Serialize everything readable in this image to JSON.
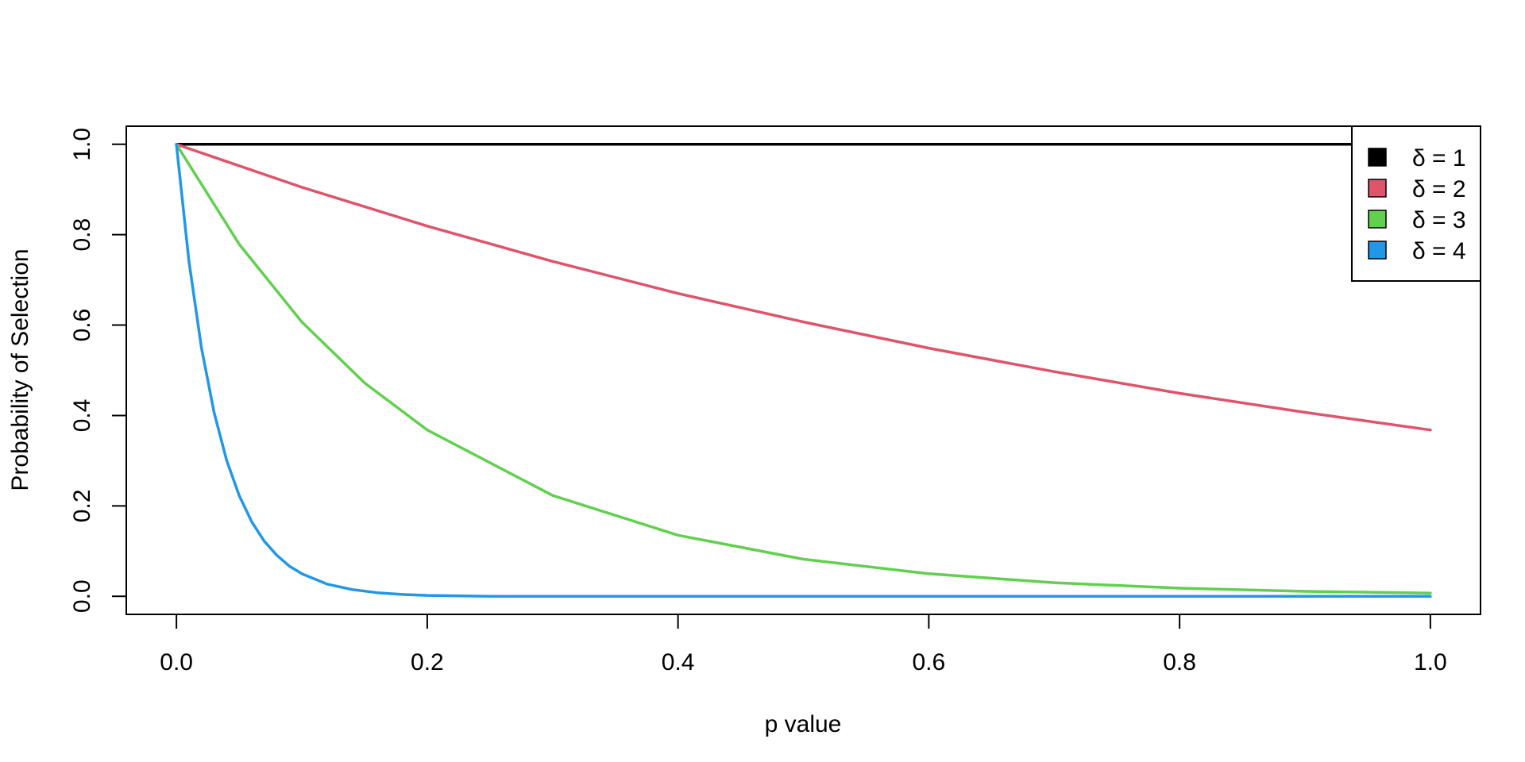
{
  "chart_data": {
    "type": "line",
    "title": "",
    "xlabel": "p value",
    "ylabel": "Probability of Selection",
    "xlim": [
      -0.04,
      1.04
    ],
    "ylim": [
      -0.04,
      1.04
    ],
    "x_ticks": [
      "0.0",
      "0.2",
      "0.4",
      "0.6",
      "0.8",
      "1.0"
    ],
    "y_ticks": [
      "0.0",
      "0.2",
      "0.4",
      "0.6",
      "0.8",
      "1.0"
    ],
    "grid": false,
    "legend_position": "top-right",
    "series": [
      {
        "name": "δ = 1",
        "color": "#000000",
        "x": [
          0.0,
          0.1,
          0.2,
          0.3,
          0.4,
          0.5,
          0.6,
          0.7,
          0.8,
          0.9,
          1.0
        ],
        "values": [
          1.0,
          1.0,
          1.0,
          1.0,
          1.0,
          1.0,
          1.0,
          1.0,
          1.0,
          1.0,
          1.0
        ]
      },
      {
        "name": "δ = 2",
        "color": "#DF536B",
        "x": [
          0.0,
          0.1,
          0.2,
          0.3,
          0.4,
          0.5,
          0.6,
          0.7,
          0.8,
          0.9,
          1.0
        ],
        "values": [
          1.0,
          0.905,
          0.819,
          0.741,
          0.67,
          0.607,
          0.549,
          0.497,
          0.449,
          0.407,
          0.368
        ]
      },
      {
        "name": "δ = 3",
        "color": "#61D04F",
        "x": [
          0.0,
          0.05,
          0.1,
          0.15,
          0.2,
          0.3,
          0.4,
          0.5,
          0.6,
          0.7,
          0.8,
          0.9,
          1.0
        ],
        "values": [
          1.0,
          0.779,
          0.607,
          0.472,
          0.368,
          0.223,
          0.135,
          0.082,
          0.05,
          0.03,
          0.018,
          0.011,
          0.007
        ]
      },
      {
        "name": "δ = 4",
        "color": "#2297E6",
        "x": [
          0.0,
          0.01,
          0.02,
          0.03,
          0.04,
          0.05,
          0.06,
          0.07,
          0.08,
          0.09,
          0.1,
          0.12,
          0.14,
          0.16,
          0.18,
          0.2,
          0.25,
          0.3,
          0.4,
          0.5,
          0.6,
          0.7,
          0.8,
          0.9,
          1.0
        ],
        "values": [
          1.0,
          0.741,
          0.549,
          0.407,
          0.301,
          0.223,
          0.165,
          0.122,
          0.091,
          0.067,
          0.05,
          0.027,
          0.015,
          0.008,
          0.004,
          0.002,
          0.0,
          0.0,
          0.0,
          0.0,
          0.0,
          0.0,
          0.0,
          0.0,
          0.0
        ]
      }
    ]
  }
}
